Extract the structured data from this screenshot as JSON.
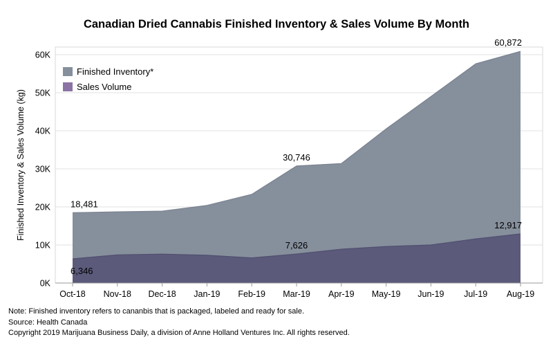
{
  "chart_data": {
    "type": "area",
    "title": "Canadian Dried Cannabis Finished Inventory & Sales Volume By Month",
    "ylabel": "Finished Inventory & Sales Volume (kg)",
    "xlabel": "",
    "categories": [
      "Oct-18",
      "Nov-18",
      "Dec-18",
      "Jan-19",
      "Feb-19",
      "Mar-19",
      "Apr-19",
      "May-19",
      "Jun-19",
      "Jul-19",
      "Aug-19"
    ],
    "ylim": [
      0,
      62000
    ],
    "yticks": [
      0,
      10000,
      20000,
      30000,
      40000,
      50000,
      60000
    ],
    "ytick_labels": [
      "0K",
      "10K",
      "20K",
      "30K",
      "40K",
      "50K",
      "60K"
    ],
    "grid": true,
    "legend_position": "top-left",
    "series": [
      {
        "name": "Finished Inventory*",
        "color": "#868f9c",
        "values": [
          18481,
          18700,
          18900,
          20400,
          23300,
          30746,
          31400,
          40500,
          49000,
          57600,
          60872
        ]
      },
      {
        "name": "Sales Volume",
        "color": "#5b5a7b",
        "values": [
          6346,
          7400,
          7600,
          7300,
          6600,
          7626,
          8900,
          9600,
          10000,
          11600,
          12917
        ]
      }
    ],
    "annotations": [
      {
        "series": 0,
        "index": 0,
        "text": "18,481"
      },
      {
        "series": 0,
        "index": 5,
        "text": "30,746"
      },
      {
        "series": 0,
        "index": 10,
        "text": "60,872"
      },
      {
        "series": 1,
        "index": 0,
        "text": "6,346"
      },
      {
        "series": 1,
        "index": 5,
        "text": "7,626"
      },
      {
        "series": 1,
        "index": 10,
        "text": "12,917"
      }
    ],
    "legend_swatch_colors": [
      "#868f9c",
      "#8b73a5"
    ]
  },
  "notes": {
    "note": "Note: Finished inventory refers to cananbis that is packaged, labeled and ready for sale.",
    "source": "Source: Health Canada",
    "copyright": "Copyright 2019 Marijuana Business Daily, a division of Anne Holland Ventures Inc. All rights reserved."
  }
}
